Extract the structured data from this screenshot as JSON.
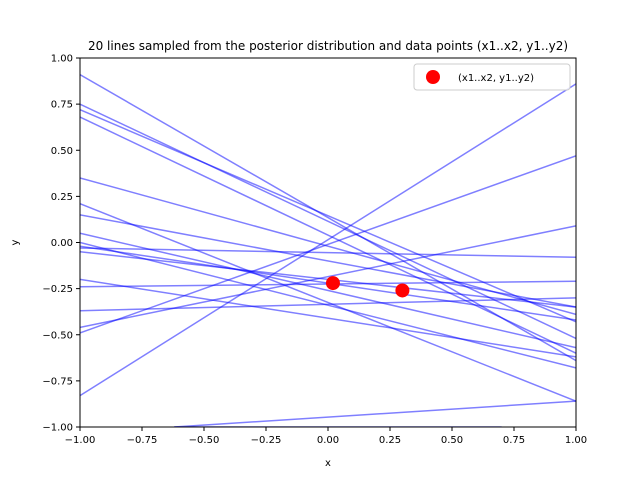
{
  "chart_data": {
    "type": "line",
    "title": "20 lines sampled from the posterior distribution and data points (x1..x2, y1..y2)",
    "xlabel": "x",
    "ylabel": "y",
    "xlim": [
      -1.0,
      1.0
    ],
    "ylim": [
      -1.0,
      1.0
    ],
    "xticks": [
      "−1.00",
      "−0.75",
      "−0.50",
      "−0.25",
      "0.00",
      "0.25",
      "0.50",
      "0.75",
      "1.00"
    ],
    "yticks": [
      "−1.00",
      "−0.75",
      "−0.50",
      "−0.25",
      "0.00",
      "0.25",
      "0.50",
      "0.75",
      "1.00"
    ],
    "grid": false,
    "line_color": "#0000ff",
    "line_alpha": 0.5,
    "point_color": "#ff0000",
    "lines": [
      {
        "x": [
          -1.0,
          1.0
        ],
        "y": [
          0.91,
          -0.64
        ]
      },
      {
        "x": [
          -1.0,
          1.0
        ],
        "y": [
          0.75,
          -0.52
        ]
      },
      {
        "x": [
          -1.0,
          1.0
        ],
        "y": [
          0.72,
          -0.43
        ]
      },
      {
        "x": [
          -1.0,
          1.0
        ],
        "y": [
          0.68,
          -0.6
        ]
      },
      {
        "x": [
          -1.0,
          1.0
        ],
        "y": [
          0.35,
          -0.39
        ]
      },
      {
        "x": [
          -1.0,
          1.0
        ],
        "y": [
          0.21,
          -0.86
        ]
      },
      {
        "x": [
          -1.0,
          1.0
        ],
        "y": [
          0.15,
          -0.35
        ]
      },
      {
        "x": [
          -1.0,
          1.0
        ],
        "y": [
          0.05,
          -0.57
        ]
      },
      {
        "x": [
          -1.0,
          1.0
        ],
        "y": [
          0.0,
          -0.68
        ]
      },
      {
        "x": [
          -1.0,
          1.0
        ],
        "y": [
          -0.02,
          -0.42
        ]
      },
      {
        "x": [
          -1.0,
          1.0
        ],
        "y": [
          -0.05,
          -0.35
        ]
      },
      {
        "x": [
          -1.0,
          1.0
        ],
        "y": [
          -0.03,
          -0.08
        ]
      },
      {
        "x": [
          -1.0,
          1.0
        ],
        "y": [
          -0.2,
          -0.62
        ]
      },
      {
        "x": [
          -1.0,
          1.0
        ],
        "y": [
          -0.24,
          -0.21
        ]
      },
      {
        "x": [
          -1.0,
          1.0
        ],
        "y": [
          -0.37,
          -0.3
        ]
      },
      {
        "x": [
          -1.0,
          1.0
        ],
        "y": [
          -0.46,
          0.09
        ]
      },
      {
        "x": [
          -1.0,
          1.0
        ],
        "y": [
          -0.49,
          0.47
        ]
      },
      {
        "x": [
          -1.0,
          1.0
        ],
        "y": [
          -0.83,
          0.86
        ]
      },
      {
        "x": [
          -0.62,
          1.0
        ],
        "y": [
          -1.0,
          -0.86
        ]
      },
      {
        "x": [
          -0.62,
          0.7
        ],
        "y": [
          -1.0,
          -1.0
        ]
      }
    ],
    "points": {
      "name": "(x1..x2, y1..y2)",
      "x": [
        0.02,
        0.3
      ],
      "y": [
        -0.22,
        -0.26
      ]
    },
    "legend_position": "top-right"
  }
}
